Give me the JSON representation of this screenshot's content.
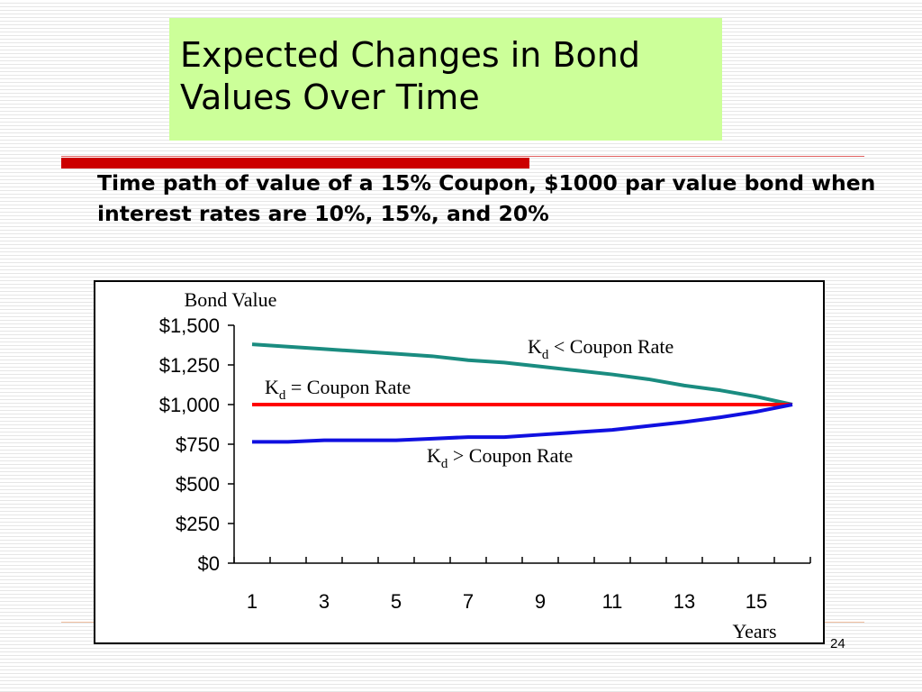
{
  "title": "Expected Changes in Bond Values Over Time",
  "subtitle": "Time path of value of a 15% Coupon, $1000 par value bond when interest rates are 10%, 15%, and 20%",
  "page_number": "24",
  "colors": {
    "title_bg": "#ccff99",
    "accent_red": "#cc0000"
  },
  "chart_data": {
    "type": "line",
    "ylabel": "Bond Value",
    "xlabel": "Years",
    "ylim": [
      0,
      1500
    ],
    "y_ticks": [
      0,
      250,
      500,
      750,
      1000,
      1250,
      1500
    ],
    "y_tick_labels": [
      "$0",
      "$250",
      "$500",
      "$750",
      "$1,000",
      "$1,250",
      "$1,500"
    ],
    "x_ticks": [
      1,
      3,
      5,
      7,
      9,
      11,
      13,
      15
    ],
    "x_tick_labels": [
      "1",
      "3",
      "5",
      "7",
      "9",
      "11",
      "13",
      "15"
    ],
    "x": [
      1,
      2,
      3,
      4,
      5,
      6,
      7,
      8,
      9,
      10,
      11,
      12,
      13,
      14,
      15,
      16
    ],
    "series": [
      {
        "color": "#1a8c80",
        "values": [
          1380,
          1365,
          1350,
          1335,
          1320,
          1305,
          1280,
          1265,
          1240,
          1215,
          1190,
          1160,
          1120,
          1090,
          1050,
          1000
        ]
      },
      {
        "color": "#ff0000",
        "values": [
          1000,
          1000,
          1000,
          1000,
          1000,
          1000,
          1000,
          1000,
          1000,
          1000,
          1000,
          1000,
          1000,
          1000,
          1000,
          1000
        ]
      },
      {
        "color": "#1010e0",
        "values": [
          765,
          765,
          775,
          775,
          775,
          785,
          795,
          795,
          810,
          825,
          840,
          865,
          890,
          920,
          955,
          1000
        ]
      }
    ],
    "annotations": [
      {
        "main": "K",
        "sub": "d",
        "rest": " < Coupon Rate"
      },
      {
        "main": "K",
        "sub": "d",
        "rest": " = Coupon Rate"
      },
      {
        "main": "K",
        "sub": "d",
        "rest": " > Coupon Rate"
      }
    ]
  }
}
